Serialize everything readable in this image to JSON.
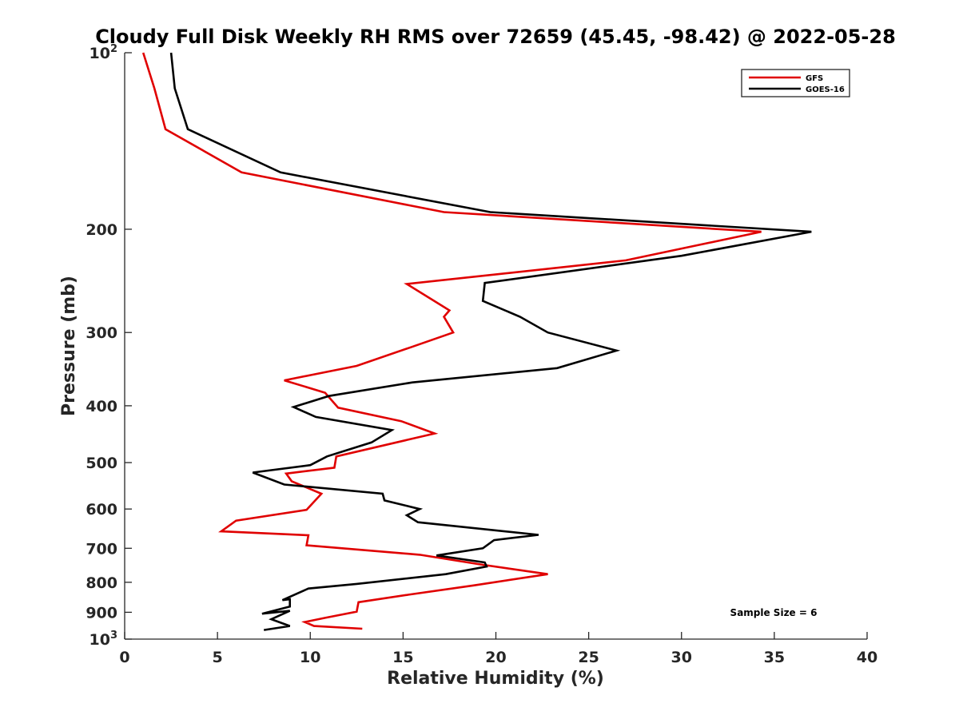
{
  "chart_data": {
    "type": "line",
    "title": "Cloudy Full Disk Weekly RH RMS over 72659 (45.45, -98.42) @ 2022-05-28",
    "xlabel": "Relative Humidity (%)",
    "ylabel": "Pressure (mb)",
    "xlim": [
      0,
      40
    ],
    "ylim": [
      100,
      1000
    ],
    "yscale": "log",
    "y_reversed": true,
    "x_ticks": [
      0,
      5,
      10,
      15,
      20,
      25,
      30,
      35,
      40
    ],
    "x_tick_labels": [
      "0",
      "5",
      "10",
      "15",
      "20",
      "25",
      "30",
      "35",
      "40"
    ],
    "y_ticks": [
      100,
      200,
      300,
      400,
      500,
      600,
      700,
      800,
      900,
      1000
    ],
    "y_tick_labels": [
      "10^2",
      "200",
      "300",
      "400",
      "500",
      "600",
      "700",
      "800",
      "900",
      "10^3"
    ],
    "y_tick_base": "10",
    "y_tick_exponents": {
      "100": "2",
      "1000": "3"
    },
    "legend": {
      "placement": "top-right"
    },
    "annotation": "Sample Size = 6",
    "series": [
      {
        "name": "GFS",
        "color": "#e00000",
        "points": [
          [
            1.0,
            100
          ],
          [
            1.6,
            115
          ],
          [
            2.2,
            135
          ],
          [
            6.3,
            160
          ],
          [
            17.2,
            187
          ],
          [
            34.3,
            202
          ],
          [
            27.0,
            226
          ],
          [
            15.2,
            248
          ],
          [
            17.5,
            275
          ],
          [
            17.2,
            282
          ],
          [
            17.7,
            300
          ],
          [
            15.4,
            318
          ],
          [
            12.5,
            342
          ],
          [
            8.6,
            362
          ],
          [
            10.8,
            380
          ],
          [
            11.5,
            403
          ],
          [
            14.9,
            425
          ],
          [
            16.7,
            446
          ],
          [
            11.4,
            488
          ],
          [
            11.3,
            510
          ],
          [
            8.7,
            522
          ],
          [
            9.0,
            538
          ],
          [
            10.6,
            565
          ],
          [
            9.8,
            602
          ],
          [
            6.0,
            628
          ],
          [
            5.2,
            655
          ],
          [
            9.9,
            665
          ],
          [
            9.8,
            692
          ],
          [
            15.9,
            718
          ],
          [
            19.2,
            746
          ],
          [
            22.8,
            775
          ],
          [
            18.8,
            810
          ],
          [
            15.3,
            840
          ],
          [
            12.6,
            865
          ],
          [
            12.5,
            898
          ],
          [
            10.8,
            920
          ],
          [
            9.7,
            935
          ],
          [
            10.2,
            950
          ],
          [
            12.8,
            960
          ]
        ]
      },
      {
        "name": "GOES-16",
        "color": "#000000",
        "points": [
          [
            2.5,
            100
          ],
          [
            2.7,
            115
          ],
          [
            3.4,
            135
          ],
          [
            8.4,
            160
          ],
          [
            19.7,
            187
          ],
          [
            37.0,
            202
          ],
          [
            30.0,
            222
          ],
          [
            19.4,
            247
          ],
          [
            19.3,
            265
          ],
          [
            21.3,
            282
          ],
          [
            22.8,
            300
          ],
          [
            26.5,
            322
          ],
          [
            23.3,
            345
          ],
          [
            15.5,
            365
          ],
          [
            11.0,
            385
          ],
          [
            9.1,
            402
          ],
          [
            10.3,
            418
          ],
          [
            14.4,
            440
          ],
          [
            13.3,
            462
          ],
          [
            10.9,
            488
          ],
          [
            10.0,
            505
          ],
          [
            6.9,
            520
          ],
          [
            8.6,
            545
          ],
          [
            13.9,
            565
          ],
          [
            14.0,
            580
          ],
          [
            15.9,
            600
          ],
          [
            15.2,
            615
          ],
          [
            15.8,
            632
          ],
          [
            22.3,
            664
          ],
          [
            19.9,
            678
          ],
          [
            19.3,
            700
          ],
          [
            16.8,
            720
          ],
          [
            19.4,
            740
          ],
          [
            19.5,
            752
          ],
          [
            17.3,
            775
          ],
          [
            12.5,
            805
          ],
          [
            9.9,
            820
          ],
          [
            8.5,
            858
          ],
          [
            8.9,
            855
          ],
          [
            8.9,
            880
          ],
          [
            7.4,
            905
          ],
          [
            8.9,
            895
          ],
          [
            7.9,
            925
          ],
          [
            8.9,
            950
          ],
          [
            7.5,
            965
          ]
        ]
      }
    ]
  }
}
